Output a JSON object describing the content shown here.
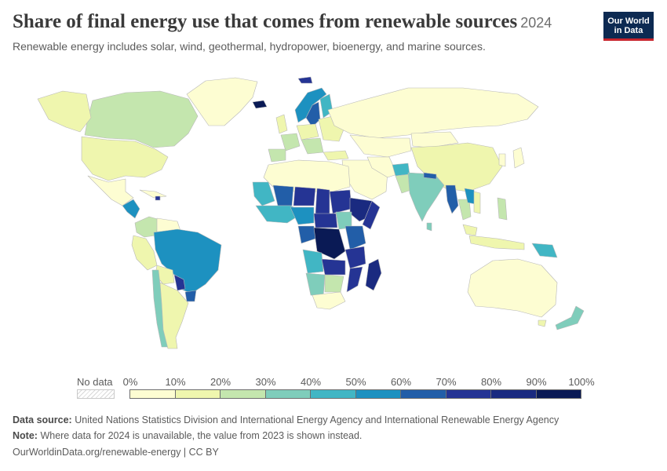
{
  "header": {
    "title": "Share of final energy use that comes from renewable sources",
    "year": "2024",
    "subtitle": "Renewable energy includes solar, wind, geothermal, hydropower, bioenergy, and marine sources."
  },
  "logo": {
    "line1": "Our World",
    "line2": "in Data"
  },
  "legend": {
    "no_data_label": "No data",
    "ticks": [
      "0%",
      "10%",
      "20%",
      "30%",
      "40%",
      "50%",
      "60%",
      "70%",
      "80%",
      "90%",
      "100%"
    ],
    "colors": [
      "#fdfdd2",
      "#eff6ae",
      "#c4e6ae",
      "#7fcdbb",
      "#41b6c4",
      "#1d91c0",
      "#225ea8",
      "#253494",
      "#1a2a80",
      "#0a1a55"
    ]
  },
  "footer": {
    "source_label": "Data source:",
    "source_text": "United Nations Statistics Division and International Energy Agency and International Renewable Energy Agency",
    "note_label": "Note:",
    "note_text": "Where data for 2024 is unavailable, the value from 2023 is shown instead.",
    "link_text": "OurWorldinData.org/renewable-energy | CC BY"
  }
}
